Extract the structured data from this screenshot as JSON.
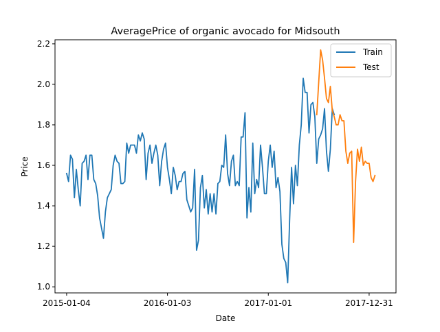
{
  "chart_data": {
    "type": "line",
    "title": "AveragePrice of organic avocado for Midsouth",
    "xlabel": "Date",
    "ylabel": "Price",
    "xlim": [
      "2014-11-23",
      "2018-04-07"
    ],
    "ylim": [
      0.97,
      2.22
    ],
    "x_ticks": [
      "2015-01-04",
      "2016-01-03",
      "2017-01-01",
      "2017-12-31"
    ],
    "y_ticks": [
      "1.0",
      "1.2",
      "1.4",
      "1.6",
      "1.8",
      "2.0",
      "2.2"
    ],
    "legend": "top-right",
    "grid": false,
    "colors": {
      "Train": "#1f77b4",
      "Test": "#ff7f0e"
    },
    "series": [
      {
        "name": "Train",
        "start": "2015-01-04",
        "step_days": 7,
        "values": [
          1.56,
          1.52,
          1.65,
          1.63,
          1.44,
          1.58,
          1.48,
          1.4,
          1.61,
          1.62,
          1.65,
          1.53,
          1.65,
          1.65,
          1.53,
          1.51,
          1.45,
          1.34,
          1.29,
          1.24,
          1.37,
          1.44,
          1.46,
          1.48,
          1.6,
          1.65,
          1.62,
          1.61,
          1.51,
          1.51,
          1.52,
          1.71,
          1.66,
          1.7,
          1.7,
          1.7,
          1.66,
          1.75,
          1.72,
          1.76,
          1.73,
          1.53,
          1.66,
          1.7,
          1.61,
          1.66,
          1.7,
          1.65,
          1.5,
          1.62,
          1.68,
          1.71,
          1.59,
          1.53,
          1.46,
          1.59,
          1.55,
          1.48,
          1.52,
          1.52,
          1.56,
          1.57,
          1.43,
          1.4,
          1.37,
          1.39,
          1.58,
          1.18,
          1.23,
          1.49,
          1.55,
          1.39,
          1.48,
          1.36,
          1.46,
          1.37,
          1.46,
          1.36,
          1.51,
          1.52,
          1.6,
          1.59,
          1.75,
          1.56,
          1.5,
          1.62,
          1.65,
          1.5,
          1.52,
          1.5,
          1.74,
          1.74,
          1.86,
          1.34,
          1.49,
          1.37,
          1.71,
          1.46,
          1.53,
          1.49,
          1.7,
          1.59,
          1.46,
          1.46,
          1.62,
          1.7,
          1.59,
          1.67,
          1.49,
          1.54,
          1.47,
          1.21,
          1.14,
          1.12,
          1.02,
          1.33,
          1.59,
          1.41,
          1.6,
          1.5,
          1.7,
          1.8,
          2.03,
          1.96,
          1.96,
          1.76,
          1.9,
          1.91,
          1.84,
          1.61,
          1.73,
          1.75,
          1.78,
          1.88,
          1.67,
          1.57,
          1.68,
          1.88,
          1.85
        ]
      },
      {
        "name": "Test",
        "start": "2017-06-25",
        "step_days": 7,
        "values": [
          1.85,
          2.01,
          2.17,
          2.12,
          2.03,
          1.93,
          1.91,
          1.99,
          1.87,
          1.84,
          1.8,
          1.8,
          1.85,
          1.82,
          1.82,
          1.67,
          1.61,
          1.66,
          1.67,
          1.22,
          1.52,
          1.68,
          1.62,
          1.69,
          1.6,
          1.62,
          1.61,
          1.61,
          1.54,
          1.52,
          1.55
        ]
      }
    ]
  }
}
